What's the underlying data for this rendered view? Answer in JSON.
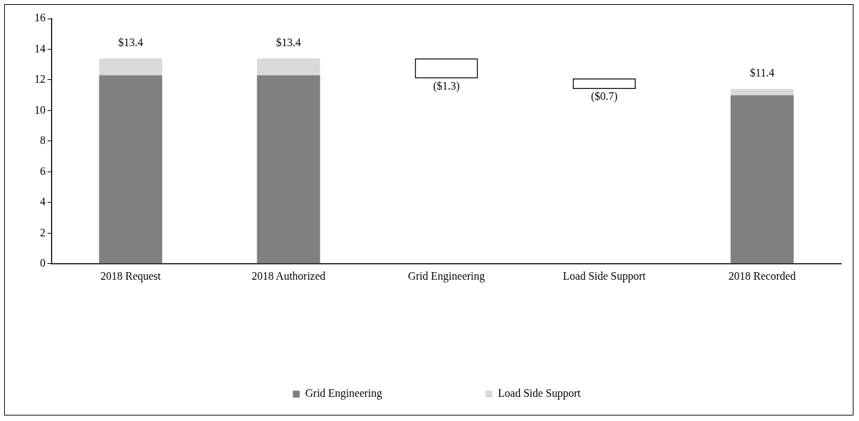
{
  "chart_data": {
    "type": "bar",
    "stacked": true,
    "categories": [
      "2018 Request",
      "2018 Authorized",
      "Grid Engineering",
      "Load Side Support",
      "2018 Recorded"
    ],
    "ylim": [
      0,
      16
    ],
    "yticks": [
      0,
      2,
      4,
      6,
      8,
      10,
      12,
      14,
      16
    ],
    "grid": false,
    "legend": "bottom",
    "series": [
      {
        "name": "Grid Engineering",
        "color": "#808080",
        "values": [
          12.3,
          12.3,
          null,
          null,
          11.0
        ]
      },
      {
        "name": "Load Side Support",
        "color": "#d9d9d9",
        "values": [
          1.1,
          1.1,
          null,
          null,
          0.4
        ]
      },
      {
        "color": "#000000",
        "values": [
          null,
          null,
          -1.3,
          -0.7,
          null
        ],
        "base": [
          null,
          null,
          13.4,
          12.1,
          null
        ],
        "value_labels": [
          null,
          null,
          "($1.3)",
          "($0.7)",
          null
        ]
      }
    ],
    "totals": [
      "$13.4",
      "$13.4",
      null,
      null,
      "$11.4"
    ]
  }
}
